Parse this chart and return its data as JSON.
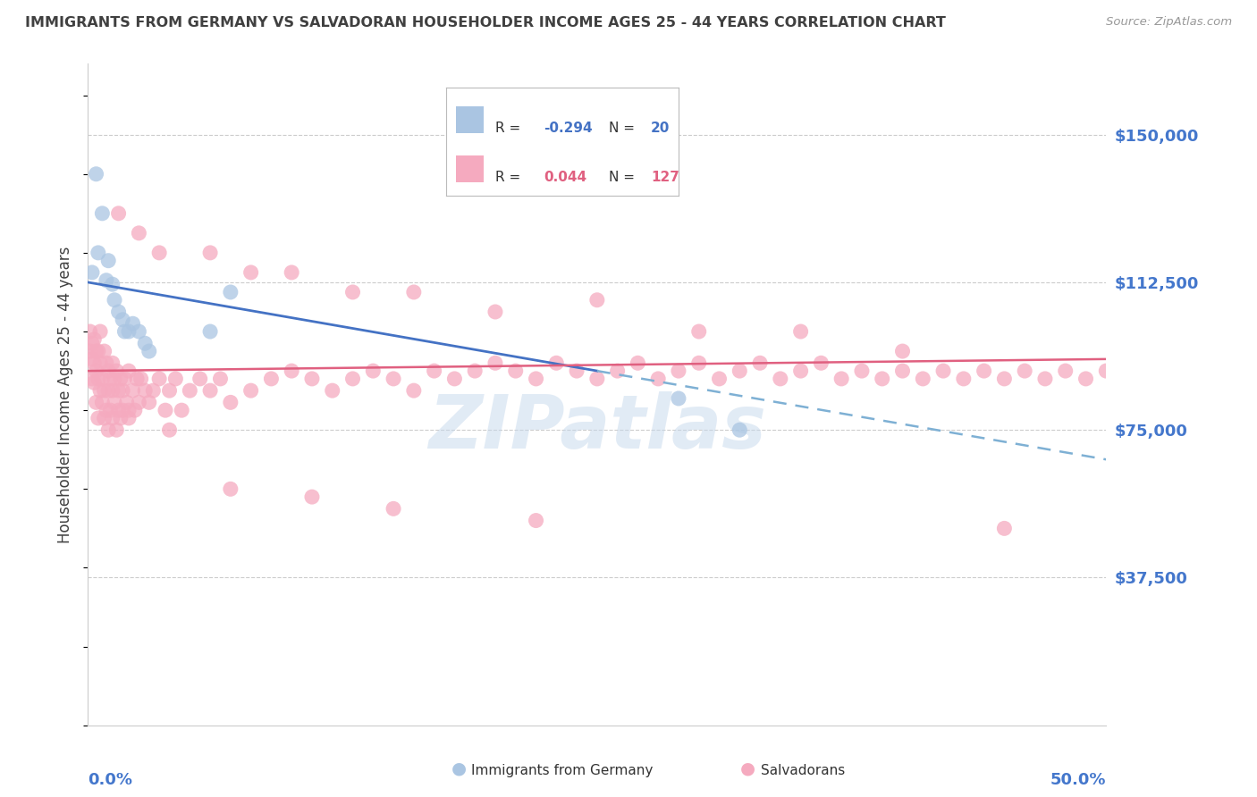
{
  "title": "IMMIGRANTS FROM GERMANY VS SALVADORAN HOUSEHOLDER INCOME AGES 25 - 44 YEARS CORRELATION CHART",
  "source": "Source: ZipAtlas.com",
  "ylabel": "Householder Income Ages 25 - 44 years",
  "ylim": [
    0,
    168000
  ],
  "xlim": [
    0.0,
    0.5
  ],
  "legend_blue_R": "-0.294",
  "legend_blue_N": "20",
  "legend_pink_R": "0.044",
  "legend_pink_N": "127",
  "blue_color": "#aac5e2",
  "pink_color": "#f5aabf",
  "blue_line_color": "#4472c4",
  "pink_line_color": "#e06080",
  "blue_dash_color": "#7eb0d4",
  "background_color": "#ffffff",
  "grid_color": "#cccccc",
  "axis_label_color": "#4477cc",
  "title_color": "#404040",
  "watermark_color": "#c5d8ec",
  "ytick_values": [
    37500,
    75000,
    112500,
    150000
  ],
  "ytick_labels": [
    "$37,500",
    "$75,000",
    "$112,500",
    "$150,000"
  ],
  "blue_x": [
    0.002,
    0.004,
    0.005,
    0.007,
    0.009,
    0.01,
    0.012,
    0.013,
    0.015,
    0.017,
    0.018,
    0.02,
    0.022,
    0.025,
    0.028,
    0.03,
    0.06,
    0.07,
    0.29,
    0.32
  ],
  "blue_y": [
    115000,
    140000,
    120000,
    130000,
    113000,
    118000,
    112000,
    108000,
    105000,
    103000,
    100000,
    100000,
    102000,
    100000,
    97000,
    95000,
    100000,
    110000,
    83000,
    75000
  ],
  "pink_x": [
    0.001,
    0.001,
    0.002,
    0.002,
    0.002,
    0.003,
    0.003,
    0.003,
    0.004,
    0.004,
    0.004,
    0.005,
    0.005,
    0.005,
    0.006,
    0.006,
    0.006,
    0.007,
    0.007,
    0.008,
    0.008,
    0.008,
    0.009,
    0.009,
    0.01,
    0.01,
    0.01,
    0.011,
    0.011,
    0.012,
    0.012,
    0.012,
    0.013,
    0.013,
    0.014,
    0.014,
    0.015,
    0.015,
    0.016,
    0.016,
    0.017,
    0.017,
    0.018,
    0.019,
    0.02,
    0.02,
    0.022,
    0.023,
    0.024,
    0.025,
    0.026,
    0.028,
    0.03,
    0.032,
    0.035,
    0.038,
    0.04,
    0.043,
    0.046,
    0.05,
    0.055,
    0.06,
    0.065,
    0.07,
    0.08,
    0.09,
    0.1,
    0.11,
    0.12,
    0.13,
    0.14,
    0.15,
    0.16,
    0.17,
    0.18,
    0.19,
    0.2,
    0.21,
    0.22,
    0.23,
    0.24,
    0.25,
    0.26,
    0.27,
    0.28,
    0.29,
    0.3,
    0.31,
    0.32,
    0.33,
    0.34,
    0.35,
    0.36,
    0.37,
    0.38,
    0.39,
    0.4,
    0.41,
    0.42,
    0.43,
    0.44,
    0.45,
    0.46,
    0.47,
    0.48,
    0.49,
    0.5,
    0.015,
    0.025,
    0.035,
    0.06,
    0.08,
    0.1,
    0.13,
    0.16,
    0.2,
    0.25,
    0.3,
    0.35,
    0.4,
    0.45,
    0.02,
    0.04,
    0.07,
    0.11,
    0.15,
    0.22
  ],
  "pink_y": [
    95000,
    100000,
    88000,
    93000,
    97000,
    92000,
    98000,
    87000,
    95000,
    90000,
    82000,
    88000,
    95000,
    78000,
    92000,
    85000,
    100000,
    88000,
    82000,
    95000,
    85000,
    78000,
    92000,
    80000,
    90000,
    85000,
    75000,
    88000,
    80000,
    92000,
    85000,
    78000,
    88000,
    82000,
    90000,
    75000,
    85000,
    80000,
    88000,
    78000,
    85000,
    80000,
    88000,
    82000,
    90000,
    78000,
    85000,
    80000,
    88000,
    82000,
    88000,
    85000,
    82000,
    85000,
    88000,
    80000,
    85000,
    88000,
    80000,
    85000,
    88000,
    85000,
    88000,
    82000,
    85000,
    88000,
    90000,
    88000,
    85000,
    88000,
    90000,
    88000,
    85000,
    90000,
    88000,
    90000,
    92000,
    90000,
    88000,
    92000,
    90000,
    88000,
    90000,
    92000,
    88000,
    90000,
    92000,
    88000,
    90000,
    92000,
    88000,
    90000,
    92000,
    88000,
    90000,
    88000,
    90000,
    88000,
    90000,
    88000,
    90000,
    88000,
    90000,
    88000,
    90000,
    88000,
    90000,
    130000,
    125000,
    120000,
    120000,
    115000,
    115000,
    110000,
    110000,
    105000,
    108000,
    100000,
    100000,
    95000,
    50000,
    80000,
    75000,
    60000,
    58000,
    55000,
    52000
  ]
}
